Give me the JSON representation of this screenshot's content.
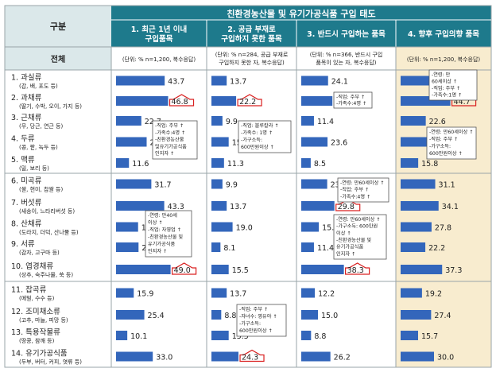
{
  "table": {
    "main_title": "친환경농산물 및 유기가공식품 구입 태도",
    "row_header": "구분",
    "total_label": "전체",
    "columns": [
      {
        "title_lines": [
          "1. 최근 1년 이내",
          "구입품목"
        ],
        "note_lines": [
          "(단위: % n=1,200, 복수응답)"
        ]
      },
      {
        "title_lines": [
          "2. 공급 부재로",
          "구입하지 못한 품목"
        ],
        "note_lines": [
          "(단위: % n=284, 공급 부재로",
          "구입하지 못한 자, 복수응답)"
        ]
      },
      {
        "title_lines": [
          "3. 반드시 구입하는 품목"
        ],
        "note_lines": [
          "(단위: % n=366, 반드시 구입",
          "품목이 있는 자, 복수응답)"
        ]
      },
      {
        "title_lines": [
          "4. 향후 구입의향 품목"
        ],
        "note_lines": [
          "(단위: % n=1,200, 복수응답)"
        ]
      }
    ],
    "rows": [
      {
        "name": "1. 과실류",
        "sub": "(감, 배, 포도 등)"
      },
      {
        "name": "2. 과채류",
        "sub": "(딸기, 수박, 오이, 가지 등)"
      },
      {
        "name": "3. 근채류",
        "sub": "(무, 당근, 연근 등)"
      },
      {
        "name": "4. 두류",
        "sub": "(콩, 팥, 녹두 등)"
      },
      {
        "name": "5. 맥류",
        "sub": "(밀, 보리 등)"
      },
      {
        "name": "6. 미곡류",
        "sub": "(쌀, 현미, 찹쌀 등)"
      },
      {
        "name": "7. 버섯류",
        "sub": "(새송이, 느타리버섯 등)"
      },
      {
        "name": "8. 산채류",
        "sub": "(도라지, 더덕, 산나물 등)"
      },
      {
        "name": "9. 서류",
        "sub": "(감자, 고구마 등)"
      },
      {
        "name": "10. 엽경채류",
        "sub": "(상추, 숙주나물, 쑥 등)"
      },
      {
        "name": "11. 잡곡류",
        "sub": "(메밀, 수수 등)"
      },
      {
        "name": "12. 조미채소류",
        "sub": "(고추, 마늘, 피망 등)"
      },
      {
        "name": "13. 특용작물류",
        "sub": "(땅콩, 참깨 등)"
      },
      {
        "name": "14. 유기가공식품",
        "sub": "(두부, 버터, 커피, 엿류 등)"
      }
    ]
  },
  "chart_data": [
    {
      "type": "bar",
      "title": "1. 최근 1년 이내 구입품목",
      "categories": [
        "과실류",
        "과채류",
        "근채류",
        "두류",
        "맥류",
        "미곡류",
        "버섯류",
        "산채류",
        "서류",
        "엽경채류",
        "잡곡류",
        "조미채소류",
        "특용작물류",
        "유기가공식품"
      ],
      "values": [
        43.7,
        46.8,
        22.7,
        27.5,
        11.6,
        31.7,
        43.3,
        19.8,
        20.2,
        49.0,
        15.9,
        25.4,
        10.1,
        33.0
      ],
      "highlighted": [
        1,
        9
      ]
    },
    {
      "type": "bar",
      "title": "2. 공급 부재로 구입하지 못한 품목",
      "categories": [
        "과실류",
        "과채류",
        "근채류",
        "두류",
        "맥류",
        "미곡류",
        "버섯류",
        "산채류",
        "서류",
        "엽경채류",
        "잡곡류",
        "조미채소류",
        "특용작물류",
        "유기가공식품"
      ],
      "values": [
        13.7,
        22.2,
        9.9,
        15.5,
        11.3,
        9.9,
        13.7,
        19.0,
        8.1,
        15.5,
        13.7,
        8.8,
        15.5,
        24.3
      ],
      "highlighted": [
        1,
        13
      ]
    },
    {
      "type": "bar",
      "title": "3. 반드시 구입하는 품목",
      "categories": [
        "과실류",
        "과채류",
        "근채류",
        "두류",
        "맥류",
        "미곡류",
        "버섯류",
        "산채류",
        "서류",
        "엽경채류",
        "잡곡류",
        "조미채소류",
        "특용작물류",
        "유기가공식품"
      ],
      "values": [
        24.1,
        28.0,
        11.4,
        23.6,
        8.5,
        23.3,
        29.8,
        15.8,
        11.4,
        38.3,
        12.2,
        15.0,
        8.8,
        26.2
      ],
      "highlighted": [
        6,
        9
      ]
    },
    {
      "type": "bar",
      "title": "4. 향후 구입의향 품목",
      "categories": [
        "과실류",
        "과채류",
        "근채류",
        "두류",
        "맥류",
        "미곡류",
        "버섯류",
        "산채류",
        "서류",
        "엽경채류",
        "잡곡류",
        "조미채소류",
        "특용작물류",
        "유기가공식품"
      ],
      "values": [
        40.5,
        44.7,
        22.6,
        28.3,
        15.8,
        31.1,
        34.1,
        27.8,
        22.2,
        37.3,
        19.2,
        27.4,
        15.7,
        30.0
      ],
      "highlighted": [
        0,
        1
      ]
    }
  ],
  "notes": [
    {
      "col": 0,
      "lines": [
        "-직업: 주부 ↑",
        "-가족수:4명 ↑",
        "-친환경농산물",
        "및유기가공식품",
        "인지자 ↑"
      ]
    },
    {
      "col": 0,
      "lines": [
        "-연령: 만40세",
        "이상 ↑",
        "-직업: 자영업 ↑",
        "-친환경농산물 및",
        "유기가공식품",
        "인지자 ↑"
      ]
    },
    {
      "col": 1,
      "lines": [
        "-직업: 블루칼라 ↑",
        "-가족수: 1명 ↑",
        "-가구소득:",
        "600만원이상 ↑"
      ]
    },
    {
      "col": 1,
      "lines": [
        "-직업: 주부 ↑",
        "-자녀수: 영유아 ↑",
        "-가구소득:",
        "600만원이상 ↑"
      ]
    },
    {
      "col": 2,
      "lines": [
        "-직업: 주부 ↑",
        "-가족수:4명 ↑"
      ]
    },
    {
      "col": 2,
      "lines": [
        "-연령: 만60세이상 ↑",
        "-직업: 주부 ↑",
        "-가족수:4명 ↑"
      ]
    },
    {
      "col": 2,
      "lines": [
        "-연령: 만60세이상 ↑",
        "-가구소득: 600만원",
        "이상 ↑",
        "-친환경농산물 및",
        "유기가공식품",
        "인지자 ↑"
      ]
    },
    {
      "col": 3,
      "lines": [
        "-연령: 만",
        "60세이상 ↑",
        "-직업: 주부 ↑",
        "-가족수:1명 ↑"
      ]
    },
    {
      "col": 3,
      "lines": [
        "-연령: 만60세이상 ↑",
        "-직업: 주부 ↑",
        "-가구소득:",
        "600만원이상 ↑"
      ]
    }
  ],
  "colors": {
    "title_bg": "#1e7a8c",
    "header_bg": "#dbe8ea",
    "bar": "#3366bb",
    "arrow": "#d92020",
    "col4_bg": "#f8eccf",
    "grid": "#9aa5a8",
    "text": "#222222"
  }
}
